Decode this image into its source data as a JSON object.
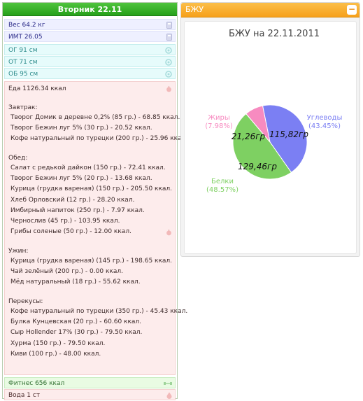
{
  "day": {
    "title": "Вторник 22.11"
  },
  "stats": {
    "weight": "Вес 64.2 кг",
    "bmi": "ИМТ 26.05",
    "og": "ОГ 91 см",
    "ot": "ОТ 71 см",
    "ob": "ОБ 95 см"
  },
  "food": {
    "total": "Еда 1126.34 ккал",
    "meals": [
      {
        "title": "Завтрак:",
        "items": [
          "Творог Домик в деревне 0,2% (85 гр.) - 68.85 ккал.",
          "Творог Бежин луг 5% (30 гр.) - 20.52 ккал.",
          "Кофе натуральный по турецки (200 гр.) - 25.96 ккал."
        ]
      },
      {
        "title": "Обед:",
        "items": [
          "Салат с редькой дайкон (150 гр.) - 72.41 ккал.",
          "Творог Бежин луг 5% (20 гр.) - 13.68 ккал.",
          "Курица (грудка вареная) (150 гр.) - 205.50 ккал.",
          "Хлеб Орловский (12 гр.) - 28.20 ккал.",
          "Имбирный напиток (250 гр.) - 7.97 ккал.",
          "Чернослив (45 гр.) - 103.95 ккал.",
          "Грибы соленые (50 гр.) - 12.00 ккал."
        ]
      },
      {
        "title": "Ужин:",
        "items": [
          "Курица (грудка вареная) (145 гр.) - 198.65 ккал.",
          "Чай зелёный (200 гр.) - 0.00 ккал.",
          "Мёд натуральный (18 гр.) - 55.62 ккал."
        ]
      },
      {
        "title": "Перекусы:",
        "items": [
          "Кофе натуральный по турецки (350 гр.) - 45.43 ккал.",
          "Булка Кунцевская (20 гр.) - 60.60 ккал.",
          "Сыр Hollender 17% (30 гр.) - 79.50 ккал.",
          "Хурма (150 гр.) - 79.50 ккал.",
          "Киви (100 гр.) - 48.00 ккал."
        ]
      }
    ]
  },
  "fitness": "Фитнес 656 ккал",
  "water": "Вода 1 ст",
  "panel": {
    "title": "БЖУ",
    "collapse": "−"
  },
  "chart_data": {
    "type": "pie",
    "title": "БЖУ на 22.11.2011",
    "slices": [
      {
        "name": "Углеводы",
        "value": 115.82,
        "value_label": "115,82гр",
        "percent_label": "(43.45%)",
        "color": "#7b7ff3"
      },
      {
        "name": "Белки",
        "value": 129.46,
        "value_label": "129,46гр",
        "percent_label": "(48.57%)",
        "color": "#7ed062"
      },
      {
        "name": "Жиры",
        "value": 21.26,
        "value_label": "21,26гр",
        "percent_label": "(7.98%)",
        "color": "#f78bc0"
      }
    ]
  },
  "colors": {
    "header_green": "#2fae22",
    "panel_orange": "#f6a01a"
  }
}
